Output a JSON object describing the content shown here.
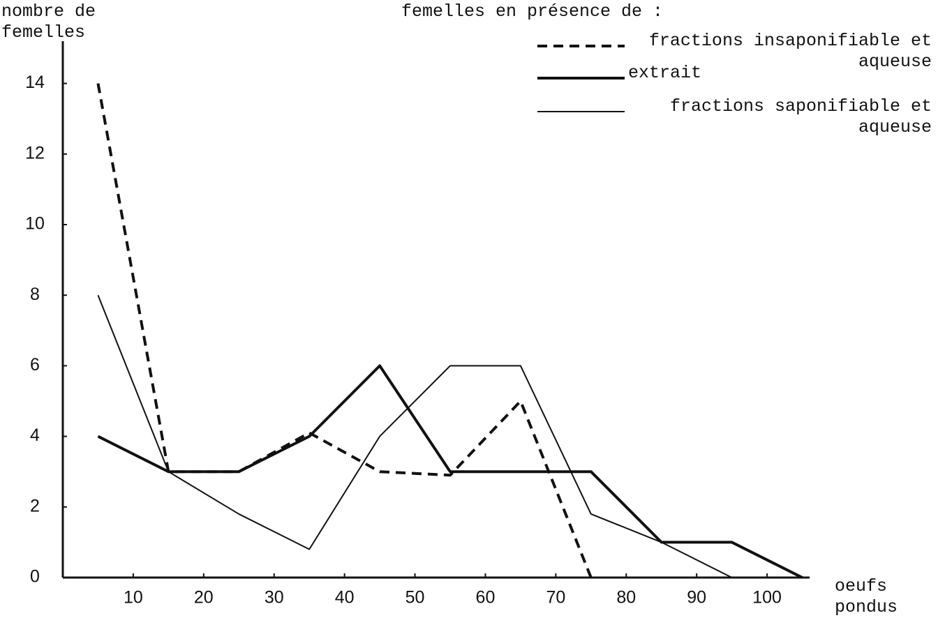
{
  "chart_data": {
    "type": "line",
    "y_label": "nombre de femelles",
    "x_label": "oeufs pondus",
    "legend_title": "femelles en présence de :",
    "x": [
      5,
      15,
      25,
      35,
      45,
      55,
      65,
      75,
      85,
      95,
      105
    ],
    "series": [
      {
        "name": "fractions insaponifiable et aqueuse",
        "color": "#111111",
        "style": "dashed",
        "width": 4,
        "values": [
          14,
          3,
          3,
          4.1,
          3,
          2.9,
          5,
          0,
          null,
          null,
          null
        ]
      },
      {
        "name": "extrait",
        "color": "#111111",
        "style": "solid",
        "width": 4,
        "values": [
          4,
          3,
          3,
          4,
          6,
          3,
          3,
          3,
          1,
          1,
          0
        ]
      },
      {
        "name": "fractions saponifiable et aqueuse",
        "color": "#111111",
        "style": "solid",
        "width": 2,
        "values": [
          8,
          3,
          1.8,
          0.8,
          4,
          6,
          6,
          1.8,
          1,
          0,
          null
        ]
      }
    ],
    "xlim": [
      0,
      110
    ],
    "xticks": [
      10,
      20,
      30,
      40,
      50,
      60,
      70,
      80,
      90,
      100
    ],
    "ylim": [
      0,
      15
    ],
    "yticks": [
      0,
      2,
      4,
      6,
      8,
      10,
      12,
      14
    ],
    "grid": false
  }
}
